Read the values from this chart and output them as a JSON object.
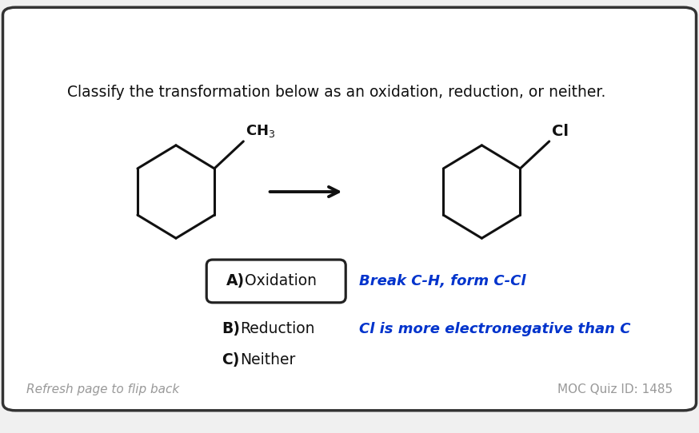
{
  "bg_color": "#f0f0f0",
  "card_color": "#ffffff",
  "border_color": "#333333",
  "question_text": "Classify the transformation below as an oxidation, reduction, or neither.",
  "question_fontsize": 13.5,
  "answer_a_bold": "A)",
  "answer_a_text": "  Oxidation",
  "answer_b_bold": "B)",
  "answer_b_text": "  Reduction",
  "answer_c_bold": "C)",
  "answer_c_text": "  Neither",
  "answer_fontsize": 13.5,
  "hint1": "Break C-H, form C-Cl",
  "hint2": "Cl is more electronegative than C",
  "hint_color": "#0033cc",
  "hint_fontsize": 13,
  "footer_left": "Refresh page to flip back",
  "footer_right": "MOC Quiz ID: 1485",
  "footer_color": "#999999",
  "footer_fontsize": 11,
  "selected_box_color": "#222222",
  "selected_box_fill": "#ffffff",
  "line_color": "#111111",
  "lw": 2.2
}
